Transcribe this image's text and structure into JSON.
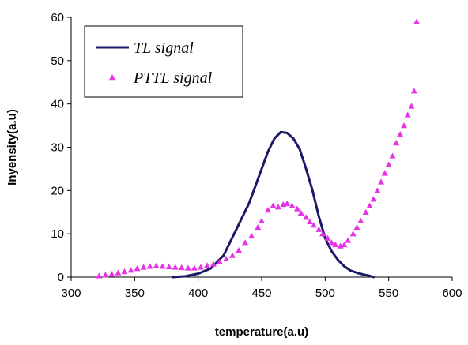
{
  "chart_data": {
    "type": "line",
    "xlabel": "temperature(a.u)",
    "ylabel": "Inyensity(a.u)",
    "xlim": [
      300,
      600
    ],
    "ylim": [
      0,
      60
    ],
    "x_ticks": [
      300,
      350,
      400,
      450,
      500,
      550,
      600
    ],
    "y_ticks": [
      0,
      10,
      20,
      30,
      40,
      50,
      60
    ],
    "grid": false,
    "legend_position": "top-left",
    "series": [
      {
        "name": "TL signal",
        "style": "line",
        "color": "#1a1a66",
        "points": [
          [
            380,
            0
          ],
          [
            390,
            0.2
          ],
          [
            400,
            0.8
          ],
          [
            410,
            2
          ],
          [
            420,
            5
          ],
          [
            425,
            8
          ],
          [
            430,
            11
          ],
          [
            435,
            14
          ],
          [
            440,
            17
          ],
          [
            445,
            21
          ],
          [
            450,
            25
          ],
          [
            455,
            29
          ],
          [
            460,
            32
          ],
          [
            465,
            33.5
          ],
          [
            470,
            33.3
          ],
          [
            475,
            32
          ],
          [
            480,
            29.5
          ],
          [
            485,
            25
          ],
          [
            490,
            20
          ],
          [
            495,
            14
          ],
          [
            500,
            9
          ],
          [
            505,
            6
          ],
          [
            510,
            4
          ],
          [
            515,
            2.5
          ],
          [
            520,
            1.5
          ],
          [
            525,
            1
          ],
          [
            530,
            0.6
          ],
          [
            535,
            0.3
          ],
          [
            538,
            0
          ]
        ]
      },
      {
        "name": "PTTL signal",
        "style": "markers",
        "marker": "triangle",
        "color": "#e633e6",
        "points": [
          [
            322,
            0.3
          ],
          [
            327,
            0.5
          ],
          [
            332,
            0.7
          ],
          [
            337,
            1
          ],
          [
            342,
            1.3
          ],
          [
            347,
            1.6
          ],
          [
            352,
            2
          ],
          [
            357,
            2.3
          ],
          [
            362,
            2.5
          ],
          [
            367,
            2.6
          ],
          [
            372,
            2.5
          ],
          [
            377,
            2.4
          ],
          [
            382,
            2.3
          ],
          [
            387,
            2.2
          ],
          [
            392,
            2.1
          ],
          [
            397,
            2.1
          ],
          [
            402,
            2.3
          ],
          [
            407,
            2.7
          ],
          [
            412,
            3
          ],
          [
            417,
            3.5
          ],
          [
            422,
            4.2
          ],
          [
            427,
            5
          ],
          [
            432,
            6.2
          ],
          [
            437,
            8
          ],
          [
            442,
            9.5
          ],
          [
            447,
            11.5
          ],
          [
            450,
            13
          ],
          [
            455,
            15.5
          ],
          [
            459,
            16.5
          ],
          [
            463,
            16.2
          ],
          [
            467,
            16.8
          ],
          [
            470,
            17
          ],
          [
            474,
            16.5
          ],
          [
            478,
            15.8
          ],
          [
            481,
            14.8
          ],
          [
            485,
            13.8
          ],
          [
            488,
            12.8
          ],
          [
            491,
            12
          ],
          [
            495,
            11
          ],
          [
            498,
            10
          ],
          [
            502,
            9
          ],
          [
            505,
            8
          ],
          [
            508,
            7.5
          ],
          [
            512,
            7.2
          ],
          [
            515,
            7.5
          ],
          [
            518,
            8.5
          ],
          [
            522,
            10
          ],
          [
            525,
            11.5
          ],
          [
            528,
            13
          ],
          [
            532,
            15
          ],
          [
            535,
            16.5
          ],
          [
            538,
            18
          ],
          [
            541,
            20
          ],
          [
            544,
            22
          ],
          [
            547,
            24
          ],
          [
            550,
            26
          ],
          [
            553,
            28
          ],
          [
            556,
            31
          ],
          [
            559,
            33
          ],
          [
            562,
            35
          ],
          [
            565,
            37.5
          ],
          [
            568,
            39.5
          ],
          [
            570,
            43
          ],
          [
            572,
            59
          ]
        ]
      }
    ]
  }
}
